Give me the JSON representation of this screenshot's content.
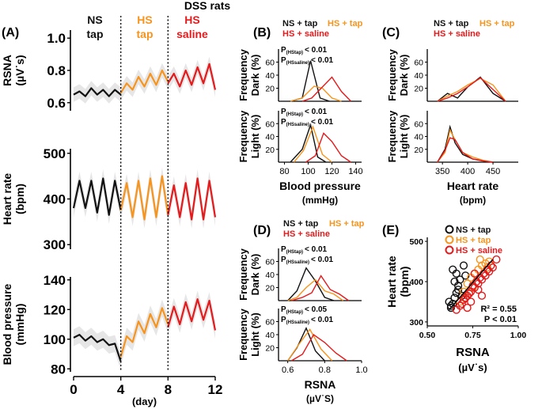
{
  "figure": {
    "title": "DSS rats",
    "colors": {
      "ns": "#111111",
      "hs_tap": "#f7941d",
      "hs_saline": "#e41a1c",
      "sd": "#c8c8c8"
    },
    "panel_labels": [
      "(A)",
      "(B)",
      "(C)",
      "(D)",
      "(E)"
    ],
    "group_labels": {
      "ns": "NS",
      "tap": "tap",
      "hs": "HS",
      "saline": "saline"
    },
    "legend": {
      "ns": "NS + tap",
      "hs_tap": "HS + tap",
      "hs_saline": "HS + saline"
    }
  },
  "chart_data": [
    {
      "id": "A-rsna",
      "type": "line",
      "panel": "(A)",
      "ylabel": [
        "RSNA",
        "(µV˙s)"
      ],
      "ylim": [
        0.55,
        1.05
      ],
      "yticks": [
        "0.6",
        "0.8",
        "1.0"
      ],
      "xlim": [
        0,
        12
      ],
      "divisions_day": [
        4,
        8
      ],
      "series": [
        {
          "name": "NS + tap",
          "group": "ns",
          "x": [
            0,
            0.5,
            1,
            1.5,
            2,
            2.5,
            3,
            3.5,
            4
          ],
          "y": [
            0.65,
            0.67,
            0.64,
            0.69,
            0.65,
            0.68,
            0.64,
            0.68,
            0.65
          ]
        },
        {
          "name": "HS + tap",
          "group": "hs_tap",
          "x": [
            4,
            4.5,
            5,
            5.5,
            6,
            6.5,
            7,
            7.5,
            8
          ],
          "y": [
            0.66,
            0.72,
            0.68,
            0.76,
            0.7,
            0.78,
            0.71,
            0.8,
            0.73
          ]
        },
        {
          "name": "HS + saline",
          "group": "hs_saline",
          "x": [
            8,
            8.5,
            9,
            9.5,
            10,
            10.5,
            11,
            11.5,
            12
          ],
          "y": [
            0.72,
            0.78,
            0.7,
            0.8,
            0.71,
            0.82,
            0.72,
            0.84,
            0.68
          ]
        }
      ]
    },
    {
      "id": "A-hr",
      "type": "line",
      "panel": "(A)",
      "ylabel": [
        "Heart rate",
        "(bpm)"
      ],
      "ylim": [
        290,
        510
      ],
      "yticks": [
        "300",
        "400",
        "500"
      ],
      "xlim": [
        0,
        12
      ],
      "series": [
        {
          "name": "NS + tap",
          "group": "ns",
          "x": [
            0,
            0.5,
            1,
            1.5,
            2,
            2.5,
            3,
            3.5,
            4
          ],
          "y": [
            380,
            440,
            380,
            440,
            370,
            445,
            365,
            440,
            375
          ]
        },
        {
          "name": "HS + tap",
          "group": "hs_tap",
          "x": [
            4,
            4.5,
            5,
            5.5,
            6,
            6.5,
            7,
            7.5,
            8
          ],
          "y": [
            375,
            435,
            360,
            440,
            355,
            445,
            360,
            450,
            365
          ]
        },
        {
          "name": "HS + saline",
          "group": "hs_saline",
          "x": [
            8,
            8.5,
            9,
            9.5,
            10,
            10.5,
            11,
            11.5,
            12
          ],
          "y": [
            365,
            430,
            360,
            435,
            355,
            445,
            355,
            440,
            360
          ]
        }
      ]
    },
    {
      "id": "A-bp",
      "type": "line",
      "panel": "(A)",
      "ylabel": [
        "Blood pressure",
        "(mmHg)"
      ],
      "ylim": [
        78,
        142
      ],
      "yticks": [
        "80",
        "100",
        "120",
        "140"
      ],
      "xlim": [
        0,
        12
      ],
      "xticks": [
        "0",
        "4",
        "8",
        "12"
      ],
      "xlabel": "(day)",
      "series": [
        {
          "name": "NS + tap",
          "group": "ns",
          "x": [
            0,
            0.5,
            1,
            1.5,
            2,
            2.5,
            3,
            3.5,
            4
          ],
          "y": [
            101,
            103,
            99,
            102,
            98,
            100,
            96,
            97,
            85
          ]
        },
        {
          "name": "HS + tap",
          "group": "hs_tap",
          "x": [
            4,
            4.5,
            5,
            5.5,
            6,
            6.5,
            7,
            7.5,
            8
          ],
          "y": [
            88,
            102,
            98,
            112,
            104,
            117,
            108,
            121,
            110
          ]
        },
        {
          "name": "HS + saline",
          "group": "hs_saline",
          "x": [
            8,
            8.5,
            9,
            9.5,
            10,
            10.5,
            11,
            11.5,
            12
          ],
          "y": [
            108,
            122,
            110,
            125,
            112,
            127,
            113,
            126,
            106
          ]
        }
      ]
    },
    {
      "id": "B-dark",
      "type": "line",
      "panel": "(B)",
      "ylabel": [
        "Frequency",
        "Dark (%)"
      ],
      "ylim": [
        0,
        80
      ],
      "yticks": [
        "0",
        "20",
        "40",
        "60"
      ],
      "xlim": [
        75,
        145
      ],
      "stats": [
        {
          "label": "P",
          "sub": "(HStap)",
          "value": "< 0.01"
        },
        {
          "label": "P",
          "sub": "(HSsaline)",
          "value": "< 0.01"
        }
      ],
      "series": [
        {
          "name": "NS + tap",
          "group": "ns",
          "x": [
            85,
            95,
            102,
            110,
            118
          ],
          "y": [
            0,
            5,
            62,
            5,
            0
          ]
        },
        {
          "name": "HS + tap",
          "group": "hs_tap",
          "x": [
            85,
            95,
            105,
            112,
            120,
            128
          ],
          "y": [
            0,
            5,
            23,
            20,
            5,
            0
          ]
        },
        {
          "name": "HS + saline",
          "group": "hs_saline",
          "x": [
            95,
            103,
            112,
            120,
            128,
            136
          ],
          "y": [
            0,
            5,
            22,
            37,
            15,
            0
          ]
        }
      ]
    },
    {
      "id": "B-light",
      "type": "line",
      "panel": "(B)",
      "ylabel": [
        "Frequency",
        "Light (%)"
      ],
      "ylim": [
        0,
        80
      ],
      "yticks": [
        "0",
        "20",
        "40",
        "60"
      ],
      "xlim": [
        75,
        145
      ],
      "xticks": [
        "80",
        "100",
        "120",
        "140"
      ],
      "xlabel": [
        "Blood pressure",
        "(mmHg)"
      ],
      "stats": [
        {
          "label": "P",
          "sub": "(HStap)",
          "value": "< 0.01"
        },
        {
          "label": "P",
          "sub": "(HSsaline)",
          "value": "< 0.01"
        }
      ],
      "series": [
        {
          "name": "NS + tap",
          "group": "ns",
          "x": [
            85,
            95,
            102,
            108,
            115
          ],
          "y": [
            0,
            20,
            58,
            8,
            0
          ]
        },
        {
          "name": "HS + tap",
          "group": "hs_tap",
          "x": [
            88,
            96,
            104,
            112,
            120
          ],
          "y": [
            0,
            18,
            55,
            12,
            0
          ]
        },
        {
          "name": "HS + saline",
          "group": "hs_saline",
          "x": [
            98,
            106,
            113,
            120,
            128,
            136
          ],
          "y": [
            0,
            10,
            45,
            32,
            10,
            0
          ]
        }
      ]
    },
    {
      "id": "C-dark",
      "type": "line",
      "panel": "(C)",
      "ylabel": [
        "Frequency",
        "Dark (%)"
      ],
      "ylim": [
        0,
        80
      ],
      "yticks": [
        "0",
        "20",
        "40",
        "60"
      ],
      "xlim": [
        320,
        500
      ],
      "series": [
        {
          "name": "NS + tap",
          "group": "ns",
          "x": [
            340,
            360,
            380,
            400,
            425,
            450,
            475
          ],
          "y": [
            0,
            12,
            5,
            22,
            37,
            12,
            0
          ]
        },
        {
          "name": "HS + tap",
          "group": "hs_tap",
          "x": [
            340,
            360,
            380,
            400,
            425,
            450,
            475
          ],
          "y": [
            0,
            8,
            15,
            25,
            35,
            25,
            0
          ]
        },
        {
          "name": "HS + saline",
          "group": "hs_saline",
          "x": [
            340,
            360,
            380,
            400,
            425,
            450,
            475
          ],
          "y": [
            0,
            5,
            12,
            22,
            36,
            18,
            0
          ]
        }
      ]
    },
    {
      "id": "C-light",
      "type": "line",
      "panel": "(C)",
      "ylabel": [
        "Frequency",
        "Light (%)"
      ],
      "ylim": [
        0,
        80
      ],
      "yticks": [
        "0",
        "20",
        "40",
        "60"
      ],
      "xlim": [
        320,
        500
      ],
      "xticks": [
        "350",
        "400",
        "450"
      ],
      "xlabel": [
        "Heart rate",
        "(bpm)"
      ],
      "series": [
        {
          "name": "NS + tap",
          "group": "ns",
          "x": [
            340,
            355,
            365,
            375,
            390,
            410,
            430,
            450
          ],
          "y": [
            0,
            20,
            55,
            30,
            12,
            5,
            2,
            0
          ]
        },
        {
          "name": "HS + tap",
          "group": "hs_tap",
          "x": [
            340,
            355,
            365,
            375,
            390,
            410,
            430,
            450
          ],
          "y": [
            0,
            15,
            50,
            35,
            15,
            8,
            3,
            0
          ]
        },
        {
          "name": "HS + saline",
          "group": "hs_saline",
          "x": [
            340,
            355,
            365,
            375,
            390,
            410,
            430,
            450
          ],
          "y": [
            0,
            18,
            38,
            35,
            15,
            5,
            2,
            0
          ]
        }
      ]
    },
    {
      "id": "D-dark",
      "type": "line",
      "panel": "(D)",
      "ylabel": [
        "Frequency",
        "Dark (%)"
      ],
      "ylim": [
        0,
        80
      ],
      "yticks": [
        "0",
        "20",
        "40",
        "60"
      ],
      "xlim": [
        0.55,
        1.0
      ],
      "stats": [
        {
          "label": "P",
          "sub": "(HStap)",
          "value": "< 0.01"
        },
        {
          "label": "P",
          "sub": "(HSsaline)",
          "value": "< 0.01"
        }
      ],
      "series": [
        {
          "name": "NS + tap",
          "group": "ns",
          "x": [
            0.6,
            0.65,
            0.7,
            0.75,
            0.8,
            0.85
          ],
          "y": [
            0,
            15,
            50,
            30,
            5,
            0
          ]
        },
        {
          "name": "HS + tap",
          "group": "hs_tap",
          "x": [
            0.6,
            0.65,
            0.7,
            0.75,
            0.8,
            0.85,
            0.9
          ],
          "y": [
            0,
            5,
            20,
            32,
            15,
            10,
            0
          ]
        },
        {
          "name": "HS + saline",
          "group": "hs_saline",
          "x": [
            0.62,
            0.68,
            0.73,
            0.78,
            0.83,
            0.88,
            0.93
          ],
          "y": [
            0,
            5,
            12,
            38,
            17,
            10,
            0
          ]
        }
      ]
    },
    {
      "id": "D-light",
      "type": "line",
      "panel": "(D)",
      "ylabel": [
        "Frequency",
        "Light (%)"
      ],
      "ylim": [
        0,
        80
      ],
      "yticks": [
        "0",
        "20",
        "40",
        "60"
      ],
      "xlim": [
        0.55,
        1.0
      ],
      "xticks": [
        "0.6",
        "0.8",
        "1.0"
      ],
      "xlabel": [
        "RSNA",
        "(µV˙S)"
      ],
      "stats": [
        {
          "label": "P",
          "sub": "(HStap)",
          "value": "< 0.05"
        },
        {
          "label": "P",
          "sub": "(HSsaline)",
          "value": "< 0.01"
        }
      ],
      "series": [
        {
          "name": "NS + tap",
          "group": "ns",
          "x": [
            0.6,
            0.65,
            0.7,
            0.75,
            0.8
          ],
          "y": [
            0,
            20,
            50,
            15,
            0
          ]
        },
        {
          "name": "HS + tap",
          "group": "hs_tap",
          "x": [
            0.6,
            0.66,
            0.72,
            0.78,
            0.84
          ],
          "y": [
            0,
            25,
            48,
            18,
            0
          ]
        },
        {
          "name": "HS + saline",
          "group": "hs_saline",
          "x": [
            0.62,
            0.68,
            0.74,
            0.8,
            0.86,
            0.92
          ],
          "y": [
            0,
            10,
            40,
            28,
            12,
            0
          ]
        }
      ]
    },
    {
      "id": "E-scatter",
      "type": "scatter",
      "panel": "(E)",
      "xlabel": [
        "RSNA",
        "(µV˙s)"
      ],
      "ylabel": [
        "Heart rate",
        "(bpm)"
      ],
      "xlim": [
        0.5,
        1.0
      ],
      "ylim": [
        290,
        510
      ],
      "xticks": [
        "0.50",
        "0.75",
        "1.00"
      ],
      "yticks": [
        "300",
        "400",
        "500"
      ],
      "stats_text": {
        "r2": "R² = 0.55",
        "p": "P < 0.01"
      },
      "fit": {
        "x": [
          0.62,
          0.86
        ],
        "y": [
          330,
          455
        ]
      },
      "series": [
        {
          "name": "NS + tap",
          "group": "ns",
          "x": [
            0.63,
            0.64,
            0.65,
            0.66,
            0.62,
            0.67,
            0.68,
            0.64,
            0.66,
            0.7,
            0.65,
            0.69,
            0.63,
            0.67,
            0.71
          ],
          "y": [
            335,
            345,
            360,
            372,
            350,
            390,
            405,
            430,
            420,
            440,
            400,
            365,
            340,
            380,
            415
          ]
        },
        {
          "name": "HS + tap",
          "group": "hs_tap",
          "x": [
            0.68,
            0.7,
            0.72,
            0.74,
            0.76,
            0.78,
            0.8,
            0.82,
            0.84,
            0.73,
            0.77,
            0.81,
            0.79,
            0.75,
            0.83,
            0.71
          ],
          "y": [
            350,
            375,
            395,
            410,
            420,
            430,
            440,
            445,
            450,
            370,
            400,
            420,
            455,
            385,
            435,
            360
          ]
        },
        {
          "name": "HS + saline",
          "group": "hs_saline",
          "x": [
            0.66,
            0.68,
            0.7,
            0.72,
            0.74,
            0.76,
            0.78,
            0.8,
            0.82,
            0.84,
            0.86,
            0.88,
            0.69,
            0.71,
            0.73,
            0.75,
            0.77,
            0.79,
            0.81,
            0.83,
            0.85,
            0.72,
            0.74,
            0.76,
            0.78,
            0.8
          ],
          "y": [
            330,
            340,
            355,
            365,
            375,
            385,
            395,
            405,
            415,
            425,
            435,
            455,
            345,
            360,
            370,
            390,
            400,
            410,
            420,
            430,
            440,
            335,
            350,
            420,
            380,
            365
          ]
        }
      ]
    }
  ]
}
